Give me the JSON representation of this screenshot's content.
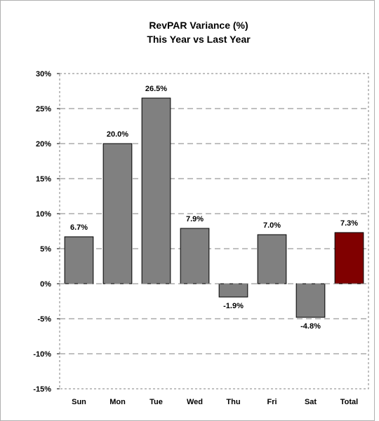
{
  "chart_data": {
    "type": "bar",
    "title": "RevPAR Variance (%)",
    "subtitle": "This Year vs Last Year",
    "categories": [
      "Sun",
      "Mon",
      "Tue",
      "Wed",
      "Thu",
      "Fri",
      "Sat",
      "Total"
    ],
    "values": [
      6.7,
      20.0,
      26.5,
      7.9,
      -1.9,
      7.0,
      -4.8,
      7.3
    ],
    "data_labels": [
      "6.7%",
      "20.0%",
      "26.5%",
      "7.9%",
      "-1.9%",
      "7.0%",
      "-4.8%",
      "7.3%"
    ],
    "ylim": [
      -15,
      30
    ],
    "yticks": [
      30,
      25,
      20,
      15,
      10,
      5,
      0,
      -5,
      -10,
      -15
    ],
    "ytick_labels": [
      "30%",
      "25%",
      "20%",
      "15%",
      "10%",
      "5%",
      "0%",
      "-5%",
      "-10%",
      "-15%"
    ],
    "grid": true,
    "colors": {
      "bar": "#808080",
      "highlight": "#800000",
      "bar_edge": "#000000",
      "grid": "#808080",
      "frame": "#808080"
    },
    "highlight_category": "Total"
  }
}
